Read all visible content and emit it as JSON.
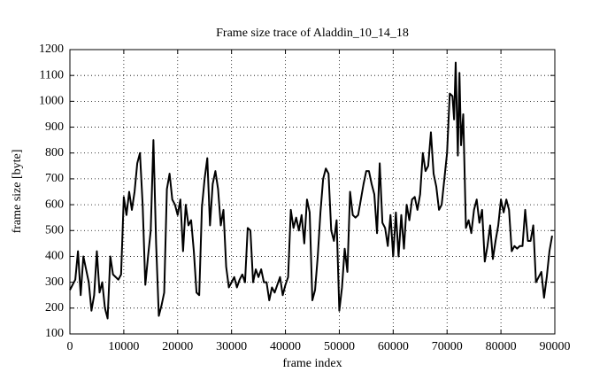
{
  "chart_data": {
    "type": "line",
    "title": "Frame size trace of Aladdin_10_14_18",
    "xlabel": "frame index",
    "ylabel": "frame size [byte]",
    "x": [
      0,
      1000,
      1500,
      2000,
      2500,
      3000,
      3500,
      4000,
      4500,
      5000,
      5500,
      6000,
      6500,
      7000,
      7500,
      8000,
      9000,
      9500,
      10000,
      10500,
      11000,
      11500,
      12000,
      12500,
      13000,
      13500,
      14000,
      14500,
      15000,
      15500,
      16000,
      16500,
      17000,
      17500,
      18000,
      18500,
      19000,
      19500,
      20000,
      20500,
      21000,
      21500,
      22000,
      22500,
      23000,
      23500,
      24000,
      24500,
      25000,
      25500,
      26000,
      26500,
      27000,
      27500,
      28000,
      28500,
      29000,
      29500,
      30000,
      30500,
      31000,
      31500,
      32000,
      32500,
      33000,
      33500,
      34000,
      34500,
      35000,
      35500,
      36000,
      36500,
      37000,
      37500,
      38000,
      38500,
      39000,
      39500,
      40000,
      40500,
      41000,
      41500,
      42000,
      42500,
      43000,
      43500,
      44000,
      44500,
      45000,
      45500,
      46000,
      46500,
      47000,
      47500,
      48000,
      48500,
      49000,
      49500,
      50000,
      50500,
      51000,
      51500,
      52000,
      52500,
      53000,
      53500,
      54000,
      54500,
      55000,
      55500,
      56000,
      56500,
      57000,
      57500,
      58000,
      58500,
      59000,
      59500,
      60000,
      60500,
      61000,
      61500,
      62000,
      62500,
      63000,
      63500,
      64000,
      64500,
      65000,
      65500,
      66000,
      66500,
      67000,
      67500,
      68000,
      68500,
      69000,
      69500,
      70000,
      70500,
      71000,
      71300,
      71600,
      72000,
      72300,
      72600,
      73000,
      73500,
      74000,
      74500,
      75000,
      75500,
      76000,
      76500,
      77000,
      77500,
      78000,
      78500,
      79000,
      79500,
      80000,
      80500,
      81000,
      81500,
      82000,
      82500,
      83000,
      83500,
      84000,
      84500,
      85000,
      85500,
      86000,
      86500,
      87000,
      87500,
      88000,
      88500,
      89000,
      89500
    ],
    "series": [
      {
        "name": "frame size",
        "color": "#000000",
        "values": [
          270,
          310,
          420,
          250,
          400,
          350,
          300,
          190,
          250,
          420,
          260,
          300,
          200,
          160,
          400,
          330,
          310,
          330,
          630,
          560,
          650,
          580,
          650,
          760,
          800,
          600,
          290,
          400,
          500,
          850,
          450,
          170,
          210,
          260,
          660,
          720,
          620,
          600,
          560,
          620,
          420,
          600,
          520,
          540,
          420,
          260,
          250,
          590,
          700,
          780,
          520,
          680,
          730,
          660,
          520,
          580,
          360,
          280,
          300,
          320,
          280,
          310,
          330,
          300,
          510,
          500,
          300,
          350,
          320,
          350,
          300,
          300,
          230,
          280,
          260,
          290,
          320,
          250,
          290,
          320,
          580,
          510,
          550,
          500,
          560,
          450,
          620,
          570,
          230,
          270,
          400,
          570,
          700,
          740,
          720,
          500,
          460,
          540,
          190,
          280,
          430,
          340,
          650,
          560,
          550,
          560,
          620,
          680,
          730,
          730,
          680,
          640,
          490,
          760,
          530,
          510,
          440,
          560,
          400,
          570,
          400,
          560,
          430,
          600,
          540,
          620,
          630,
          580,
          640,
          800,
          730,
          750,
          880,
          720,
          670,
          580,
          600,
          700,
          800,
          1030,
          1020,
          930,
          1150,
          790,
          1110,
          830,
          950,
          510,
          540,
          490,
          580,
          620,
          530,
          580,
          380,
          440,
          520,
          390,
          460,
          520,
          620,
          570,
          620,
          580,
          420,
          440,
          430,
          440,
          440,
          580,
          460,
          460,
          520,
          300,
          320,
          340,
          240,
          320,
          420,
          480
        ]
      }
    ],
    "xlim": [
      0,
      90000
    ],
    "xticks": [
      0,
      10000,
      20000,
      30000,
      40000,
      50000,
      60000,
      70000,
      80000,
      90000
    ],
    "ylim": [
      100,
      1200
    ],
    "yticks": [
      100,
      200,
      300,
      400,
      500,
      600,
      700,
      800,
      900,
      1000,
      1100,
      1200
    ],
    "grid": true
  }
}
